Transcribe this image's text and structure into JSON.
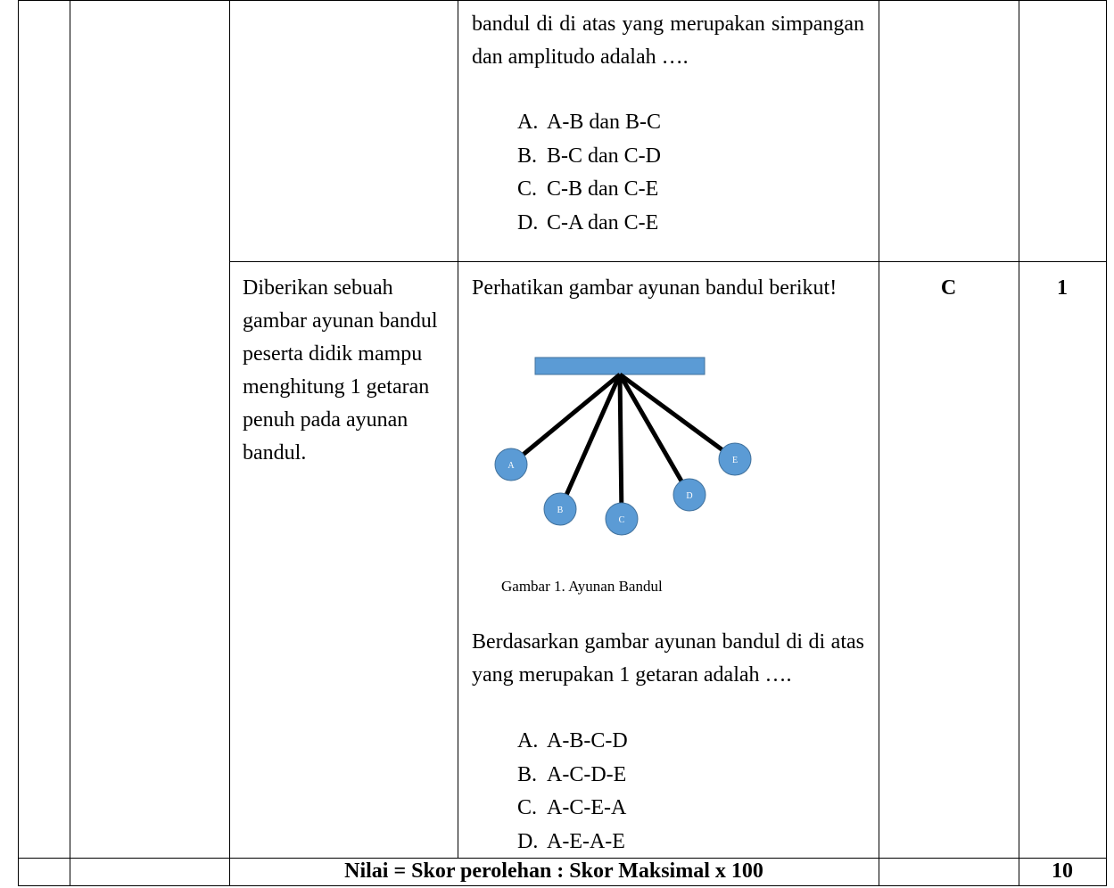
{
  "table": {
    "row1": {
      "question": "bandul di di atas yang merupakan simpangan dan amplitudo adalah ….",
      "options": [
        {
          "label": "A.",
          "text": "A-B dan B-C"
        },
        {
          "label": "B.",
          "text": "B-C dan C-D"
        },
        {
          "label": "C.",
          "text": "C-B dan C-E"
        },
        {
          "label": "D.",
          "text": "C-A dan C-E"
        }
      ]
    },
    "row2": {
      "indicator": "Diberikan sebuah gambar ayunan bandul peserta didik mampu menghitung 1 getaran penuh pada ayunan bandul.",
      "intro": "Perhatikan gambar ayunan bandul berikut!",
      "figure_labels": [
        "A",
        "B",
        "C",
        "D",
        "E"
      ],
      "caption": "Gambar 1. Ayunan Bandul",
      "question": "Berdasarkan gambar ayunan bandul di di atas yang merupakan 1 getaran  adalah ….",
      "options": [
        {
          "label": "A.",
          "text": "A-B-C-D"
        },
        {
          "label": "B.",
          "text": "A-C-D-E"
        },
        {
          "label": "C.",
          "text": "A-C-E-A"
        },
        {
          "label": "D.",
          "text": "A-E-A-E"
        }
      ],
      "key": "C",
      "score": "1"
    },
    "footer": {
      "formula": "Nilai = Skor perolehan : Skor Maksimal x 100",
      "score": "10"
    }
  }
}
